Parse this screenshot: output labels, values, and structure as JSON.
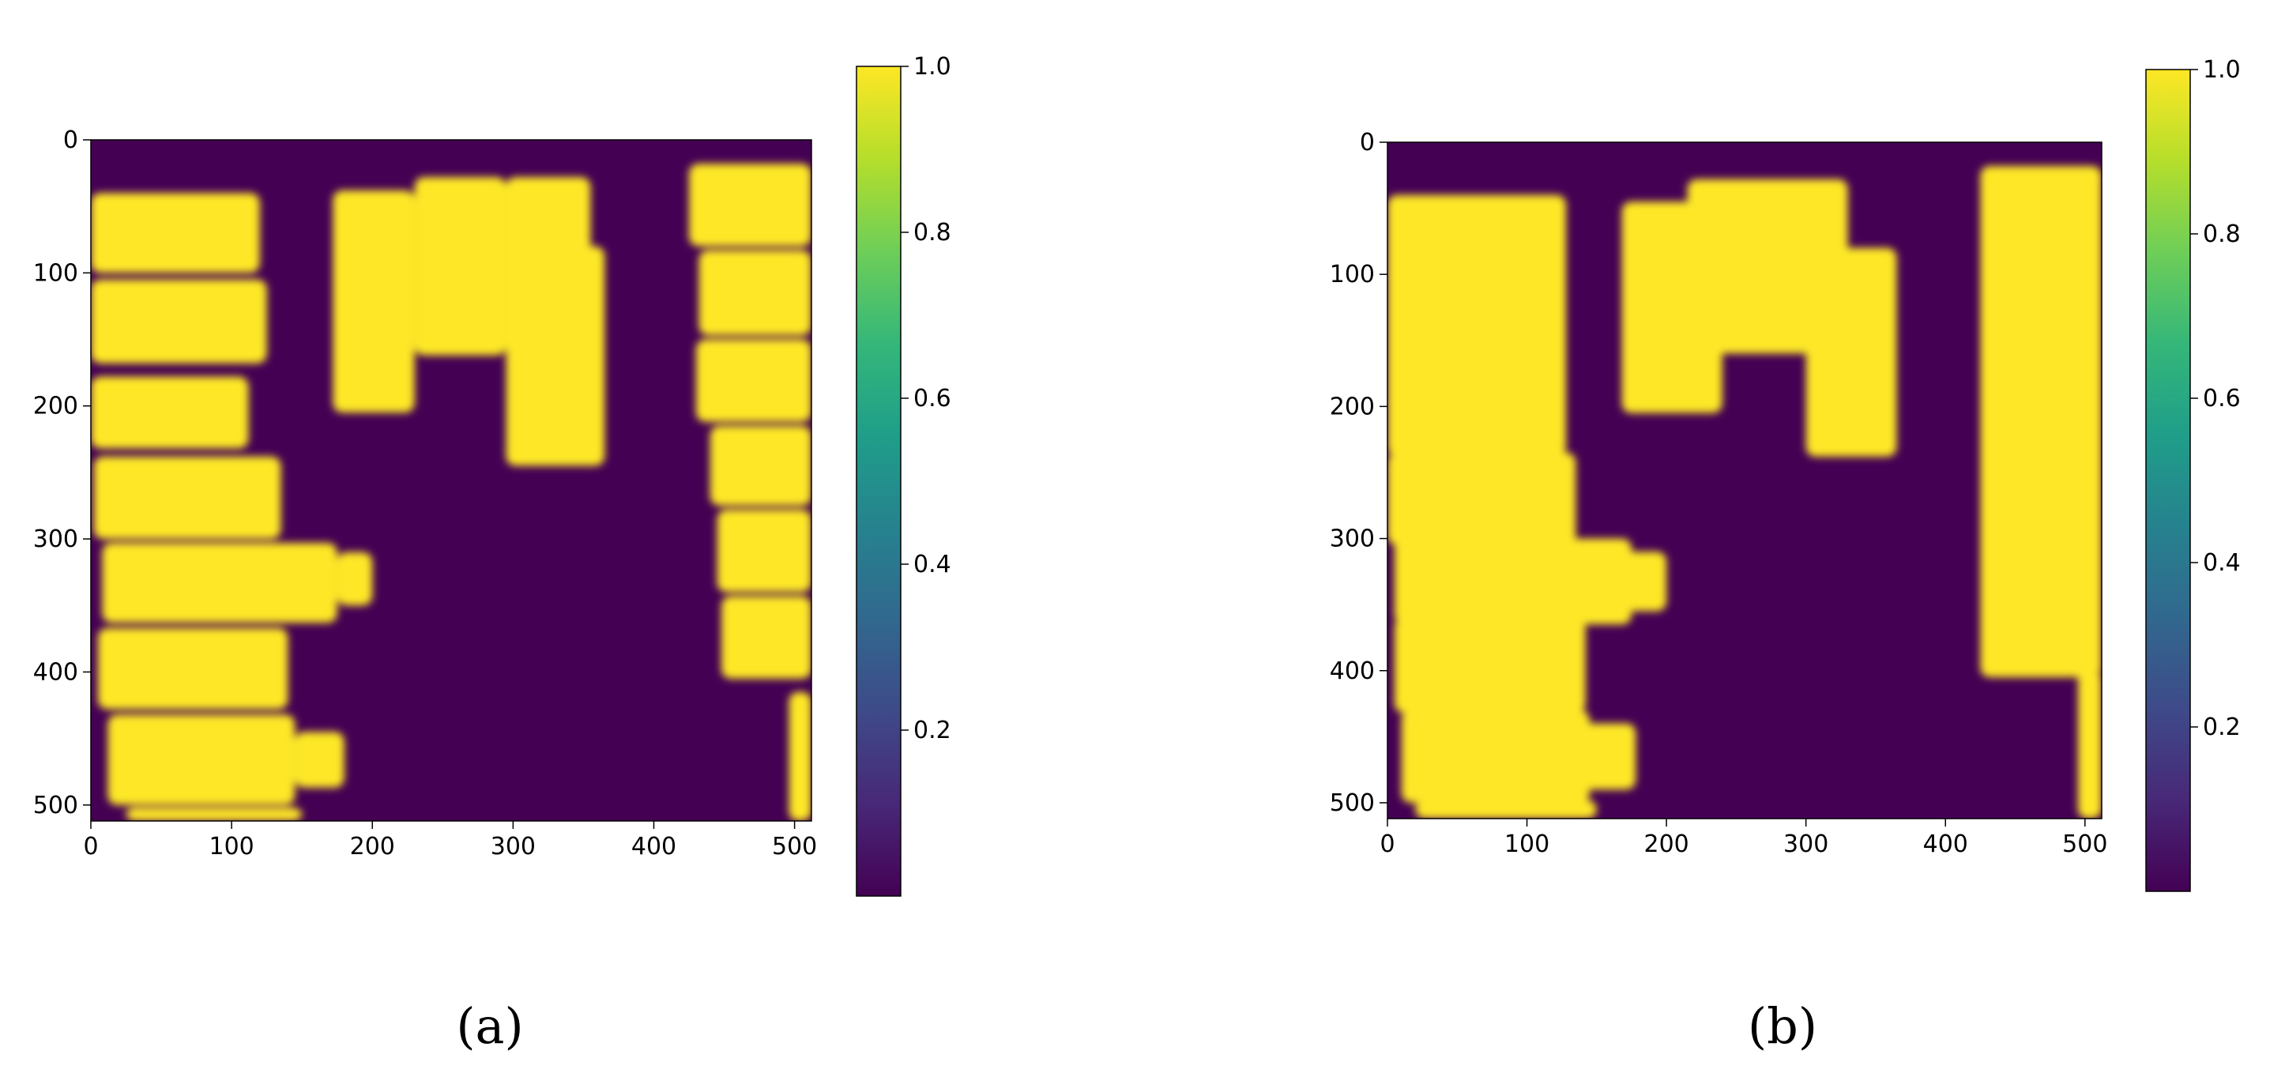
{
  "figure": {
    "panels": [
      "(a)",
      "(b)"
    ],
    "colormap_name": "viridis",
    "colormap_stops": [
      "#440154",
      "#482878",
      "#3e4a89",
      "#31688e",
      "#26828e",
      "#1f9e89",
      "#35b779",
      "#6ece58",
      "#b5de2b",
      "#fde725"
    ],
    "background_value_color": "#440154",
    "foreground_value_color": "#fde725"
  },
  "chart_data": [
    {
      "type": "heatmap",
      "panel_label": "(a)",
      "title": "",
      "xlabel": "",
      "ylabel": "",
      "xlim": [
        0,
        512
      ],
      "ylim": [
        512,
        0
      ],
      "x_ticks": [
        0,
        100,
        200,
        300,
        400,
        500
      ],
      "x_tick_labels": [
        "0",
        "100",
        "200",
        "300",
        "400",
        "500"
      ],
      "y_ticks": [
        0,
        100,
        200,
        300,
        400,
        500
      ],
      "y_tick_labels": [
        "0",
        "100",
        "200",
        "300",
        "400",
        "500"
      ],
      "colorbar": {
        "range": [
          0.0,
          1.0
        ],
        "ticks": [
          0.2,
          0.4,
          0.6,
          0.8,
          1.0
        ],
        "tick_labels": [
          "0.2",
          "0.4",
          "0.6",
          "0.8",
          "1.0"
        ]
      },
      "regions_value_1": [
        {
          "x0": 0,
          "x1": 120,
          "y0": 40,
          "y1": 100
        },
        {
          "x0": 0,
          "x1": 125,
          "y0": 105,
          "y1": 168
        },
        {
          "x0": 0,
          "x1": 112,
          "y0": 178,
          "y1": 232
        },
        {
          "x0": 2,
          "x1": 135,
          "y0": 238,
          "y1": 300
        },
        {
          "x0": 8,
          "x1": 175,
          "y0": 303,
          "y1": 363
        },
        {
          "x0": 175,
          "x1": 200,
          "y0": 310,
          "y1": 350
        },
        {
          "x0": 5,
          "x1": 140,
          "y0": 367,
          "y1": 428
        },
        {
          "x0": 12,
          "x1": 145,
          "y0": 432,
          "y1": 500
        },
        {
          "x0": 145,
          "x1": 180,
          "y0": 445,
          "y1": 487
        },
        {
          "x0": 25,
          "x1": 150,
          "y0": 502,
          "y1": 512
        },
        {
          "x0": 172,
          "x1": 230,
          "y0": 38,
          "y1": 205
        },
        {
          "x0": 230,
          "x1": 295,
          "y0": 28,
          "y1": 162
        },
        {
          "x0": 295,
          "x1": 355,
          "y0": 28,
          "y1": 162
        },
        {
          "x0": 295,
          "x1": 365,
          "y0": 80,
          "y1": 245
        },
        {
          "x0": 425,
          "x1": 512,
          "y0": 18,
          "y1": 80
        },
        {
          "x0": 432,
          "x1": 512,
          "y0": 83,
          "y1": 147
        },
        {
          "x0": 430,
          "x1": 512,
          "y0": 150,
          "y1": 212
        },
        {
          "x0": 440,
          "x1": 512,
          "y0": 215,
          "y1": 275
        },
        {
          "x0": 445,
          "x1": 512,
          "y0": 278,
          "y1": 340
        },
        {
          "x0": 448,
          "x1": 512,
          "y0": 343,
          "y1": 405
        },
        {
          "x0": 496,
          "x1": 512,
          "y0": 415,
          "y1": 512
        }
      ]
    },
    {
      "type": "heatmap",
      "panel_label": "(b)",
      "title": "",
      "xlabel": "",
      "ylabel": "",
      "xlim": [
        0,
        512
      ],
      "ylim": [
        512,
        0
      ],
      "x_ticks": [
        0,
        100,
        200,
        300,
        400,
        500
      ],
      "x_tick_labels": [
        "0",
        "100",
        "200",
        "300",
        "400",
        "500"
      ],
      "y_ticks": [
        0,
        100,
        200,
        300,
        400,
        500
      ],
      "y_tick_labels": [
        "0",
        "100",
        "200",
        "300",
        "400",
        "500"
      ],
      "colorbar": {
        "range": [
          0.0,
          1.0
        ],
        "ticks": [
          0.2,
          0.4,
          0.6,
          0.8,
          1.0
        ],
        "tick_labels": [
          "0.2",
          "0.4",
          "0.6",
          "0.8",
          "1.0"
        ]
      },
      "regions_value_1": [
        {
          "x0": 0,
          "x1": 128,
          "y0": 40,
          "y1": 238
        },
        {
          "x0": 0,
          "x1": 135,
          "y0": 235,
          "y1": 305
        },
        {
          "x0": 5,
          "x1": 175,
          "y0": 300,
          "y1": 365
        },
        {
          "x0": 170,
          "x1": 200,
          "y0": 310,
          "y1": 355
        },
        {
          "x0": 5,
          "x1": 142,
          "y0": 360,
          "y1": 432
        },
        {
          "x0": 10,
          "x1": 145,
          "y0": 430,
          "y1": 500
        },
        {
          "x0": 140,
          "x1": 178,
          "y0": 440,
          "y1": 490
        },
        {
          "x0": 20,
          "x1": 150,
          "y0": 498,
          "y1": 512
        },
        {
          "x0": 168,
          "x1": 240,
          "y0": 45,
          "y1": 205
        },
        {
          "x0": 215,
          "x1": 330,
          "y0": 28,
          "y1": 160
        },
        {
          "x0": 300,
          "x1": 365,
          "y0": 80,
          "y1": 238
        },
        {
          "x0": 425,
          "x1": 512,
          "y0": 18,
          "y1": 405
        },
        {
          "x0": 495,
          "x1": 512,
          "y0": 400,
          "y1": 512
        }
      ]
    }
  ]
}
